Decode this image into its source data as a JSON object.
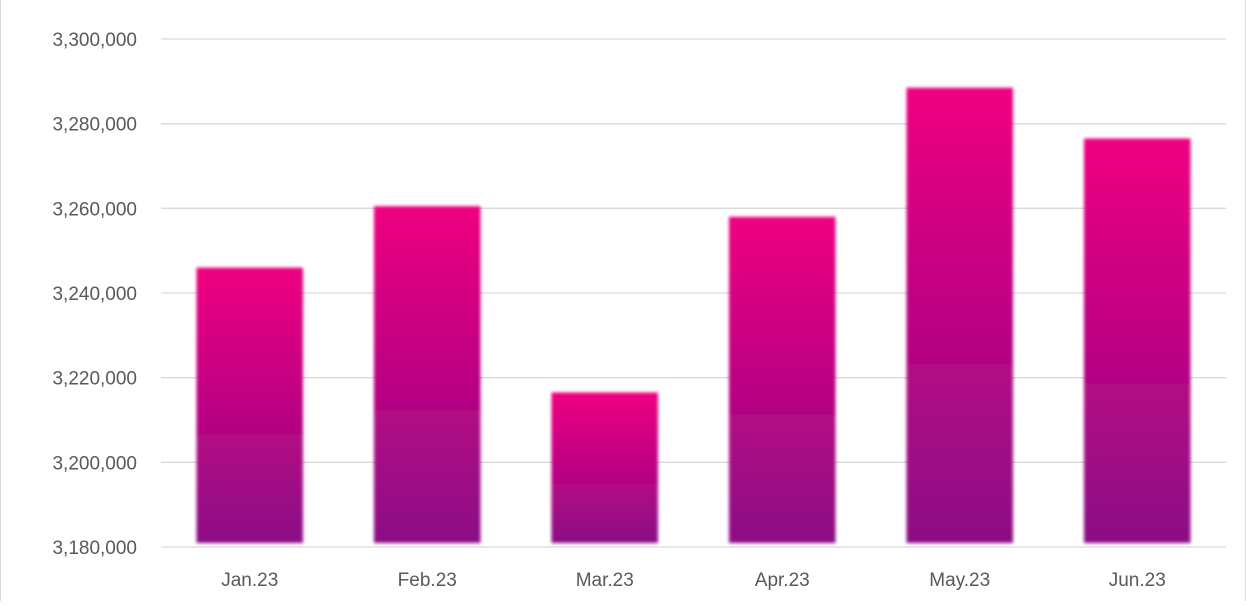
{
  "chart_data": {
    "type": "bar",
    "title": "",
    "xlabel": "",
    "ylabel": "",
    "categories": [
      "Jan.23",
      "Feb.23",
      "Mar.23",
      "Apr.23",
      "May.23",
      "Jun.23"
    ],
    "values": [
      3246000,
      3260500,
      3216500,
      3258000,
      3288500,
      3276500
    ],
    "ylim": [
      3180000,
      3300000
    ],
    "yticks": [
      3180000,
      3200000,
      3220000,
      3240000,
      3260000,
      3280000,
      3300000
    ],
    "ytick_labels": [
      "3,180,000",
      "3,200,000",
      "3,220,000",
      "3,240,000",
      "3,260,000",
      "3,280,000",
      "3,300,000"
    ],
    "grid": true,
    "legend": "none",
    "colors": {
      "bar_top": "#ee0080",
      "bar_bottom": "#8b0b86",
      "grid": "#d9d9d9",
      "tick_text": "#595959"
    }
  }
}
